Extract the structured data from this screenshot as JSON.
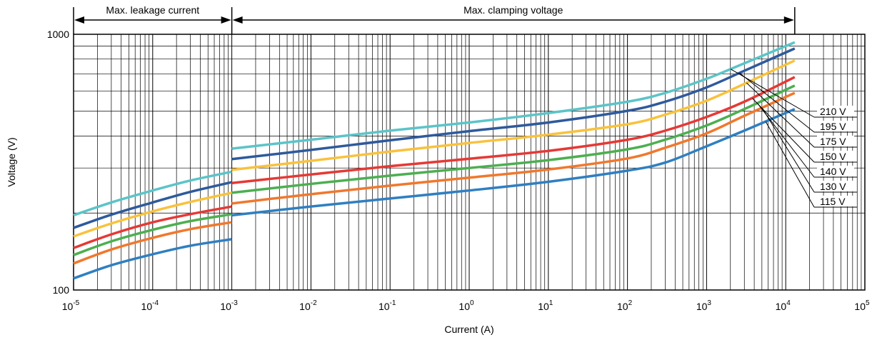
{
  "chart_data": {
    "type": "line",
    "xscale": "log",
    "yscale": "log",
    "xlim": [
      1e-05,
      100000
    ],
    "ylim": [
      100,
      1000
    ],
    "xlabel": "Current (A)",
    "ylabel": "Voltage (V)",
    "y_ticks": [
      "100",
      "1000"
    ],
    "x_ticks": [
      {
        "base": "10",
        "exp": "-5"
      },
      {
        "base": "10",
        "exp": "-4"
      },
      {
        "base": "10",
        "exp": "-3"
      },
      {
        "base": "10",
        "exp": "-2"
      },
      {
        "base": "10",
        "exp": "-1"
      },
      {
        "base": "10",
        "exp": "0"
      },
      {
        "base": "10",
        "exp": "1"
      },
      {
        "base": "10",
        "exp": "2"
      },
      {
        "base": "10",
        "exp": "3"
      },
      {
        "base": "10",
        "exp": "4"
      },
      {
        "base": "10",
        "exp": "5"
      }
    ],
    "grid": true,
    "regions": [
      {
        "label": "Max. leakage current",
        "x_range": [
          1e-05,
          0.001
        ]
      },
      {
        "label": "Max. clamping voltage",
        "x_range": [
          0.001,
          13000
        ]
      }
    ],
    "series": [
      {
        "name": "210 V",
        "color": "#5bc4c9",
        "leakage": [
          [
            1e-05,
            196
          ],
          [
            3e-05,
            220
          ],
          [
            0.0001,
            245
          ],
          [
            0.0003,
            268
          ],
          [
            0.001,
            290
          ]
        ],
        "clamping": [
          [
            0.001,
            357
          ],
          [
            0.01,
            387
          ],
          [
            0.1,
            420
          ],
          [
            1,
            452
          ],
          [
            10,
            492
          ],
          [
            100,
            545
          ],
          [
            300,
            590
          ],
          [
            1000,
            670
          ],
          [
            3000,
            770
          ],
          [
            13000,
            930
          ]
        ]
      },
      {
        "name": "195 V",
        "color": "#2e5a9c",
        "leakage": [
          [
            1e-05,
            175
          ],
          [
            3e-05,
            197
          ],
          [
            0.0001,
            220
          ],
          [
            0.0003,
            242
          ],
          [
            0.001,
            264
          ]
        ],
        "clamping": [
          [
            0.001,
            325
          ],
          [
            0.01,
            353
          ],
          [
            0.1,
            385
          ],
          [
            1,
            418
          ],
          [
            10,
            452
          ],
          [
            100,
            502
          ],
          [
            300,
            545
          ],
          [
            1000,
            620
          ],
          [
            3000,
            720
          ],
          [
            13000,
            880
          ]
        ]
      },
      {
        "name": "175 V",
        "color": "#f9c23c",
        "leakage": [
          [
            1e-05,
            162
          ],
          [
            3e-05,
            182
          ],
          [
            0.0001,
            203
          ],
          [
            0.0003,
            221
          ],
          [
            0.001,
            240
          ]
        ],
        "clamping": [
          [
            0.001,
            295
          ],
          [
            0.01,
            320
          ],
          [
            0.1,
            348
          ],
          [
            1,
            376
          ],
          [
            10,
            405
          ],
          [
            100,
            445
          ],
          [
            300,
            485
          ],
          [
            1000,
            550
          ],
          [
            3000,
            640
          ],
          [
            13000,
            790
          ]
        ]
      },
      {
        "name": "150 V",
        "color": "#e53935",
        "leakage": [
          [
            1e-05,
            146
          ],
          [
            3e-05,
            165
          ],
          [
            0.0001,
            184
          ],
          [
            0.0003,
            198
          ],
          [
            0.001,
            212
          ]
        ],
        "clamping": [
          [
            0.001,
            262
          ],
          [
            0.01,
            283
          ],
          [
            0.1,
            305
          ],
          [
            1,
            326
          ],
          [
            10,
            350
          ],
          [
            100,
            387
          ],
          [
            300,
            420
          ],
          [
            1000,
            475
          ],
          [
            3000,
            545
          ],
          [
            13000,
            680
          ]
        ]
      },
      {
        "name": "140 V",
        "color": "#4caf50",
        "leakage": [
          [
            1e-05,
            137
          ],
          [
            3e-05,
            155
          ],
          [
            0.0001,
            172
          ],
          [
            0.0003,
            186
          ],
          [
            0.001,
            198
          ]
        ],
        "clamping": [
          [
            0.001,
            240
          ],
          [
            0.01,
            260
          ],
          [
            0.1,
            280
          ],
          [
            1,
            300
          ],
          [
            10,
            322
          ],
          [
            100,
            355
          ],
          [
            300,
            387
          ],
          [
            1000,
            440
          ],
          [
            3000,
            510
          ],
          [
            13000,
            630
          ]
        ]
      },
      {
        "name": "130 V",
        "color": "#f0782d",
        "leakage": [
          [
            1e-05,
            127
          ],
          [
            3e-05,
            144
          ],
          [
            0.0001,
            160
          ],
          [
            0.0003,
            173
          ],
          [
            0.001,
            184
          ]
        ],
        "clamping": [
          [
            0.001,
            218
          ],
          [
            0.01,
            237
          ],
          [
            0.1,
            256
          ],
          [
            1,
            275
          ],
          [
            10,
            296
          ],
          [
            100,
            327
          ],
          [
            300,
            360
          ],
          [
            1000,
            410
          ],
          [
            3000,
            480
          ],
          [
            13000,
            590
          ]
        ]
      },
      {
        "name": "115 V",
        "color": "#2f7fc1",
        "leakage": [
          [
            1e-05,
            111
          ],
          [
            3e-05,
            125
          ],
          [
            0.0001,
            138
          ],
          [
            0.0003,
            149
          ],
          [
            0.001,
            158
          ]
        ],
        "clamping": [
          [
            0.001,
            196
          ],
          [
            0.01,
            212
          ],
          [
            0.1,
            228
          ],
          [
            1,
            245
          ],
          [
            10,
            265
          ],
          [
            100,
            293
          ],
          [
            300,
            315
          ],
          [
            1000,
            365
          ],
          [
            3000,
            420
          ],
          [
            13000,
            510
          ]
        ]
      }
    ]
  }
}
